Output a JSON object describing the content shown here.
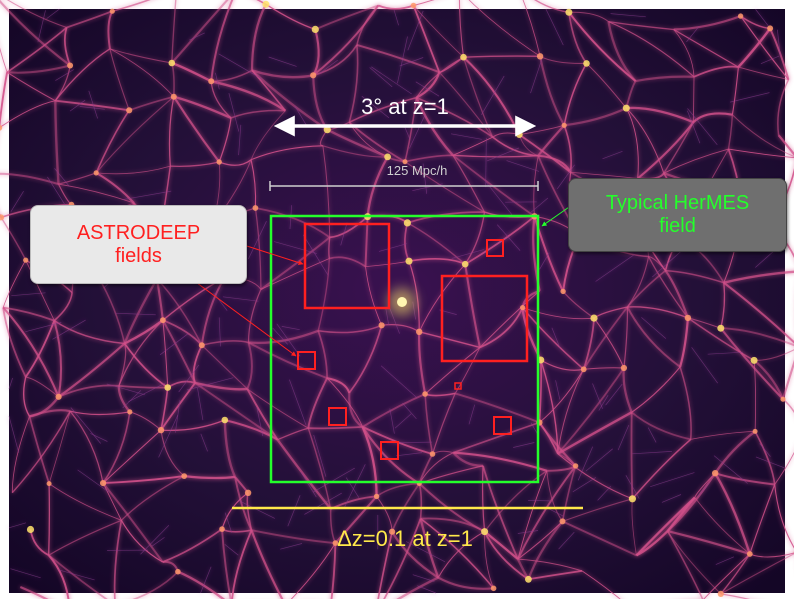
{
  "labels": {
    "scale_top": "3° at z=1",
    "mpc": "125 Mpc/h",
    "dz": "Δz=0.1 at z=1",
    "astrodeep_line1": "ASTRODEEP",
    "astrodeep_line2": "fields",
    "hermes_line1": "Typical HerMES",
    "hermes_line2": "field"
  },
  "colors": {
    "background_dark": "#14062b",
    "filament": "#d2508a",
    "node_hot": "#ffe46b",
    "astrodeep_red": "#ff2020",
    "hermes_green": "#24ff2b",
    "scale_white": "#ffffff",
    "dz_yellow": "#ffe94a"
  }
}
